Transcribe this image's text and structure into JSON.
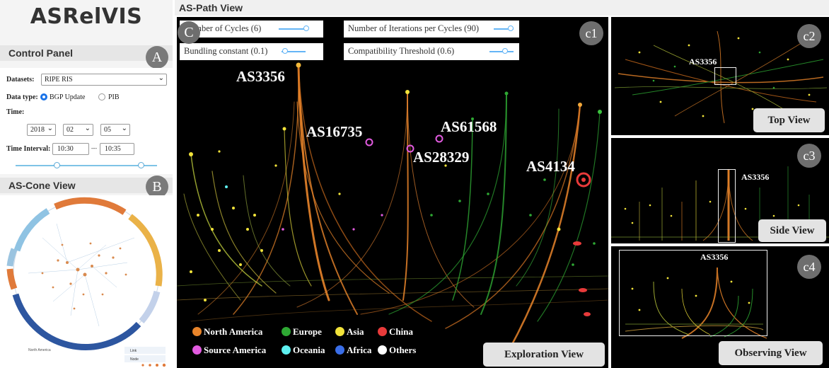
{
  "app": {
    "title": "ASRelVIS"
  },
  "control_panel": {
    "title": "Control Panel",
    "badge": "A",
    "datasets_label": "Datasets:",
    "dataset_value": "RIPE RIS",
    "datatype_label": "Data type:",
    "datatype_options": [
      "BGP Update",
      "PIB"
    ],
    "datatype_selected": "BGP Update",
    "time_label": "Time:",
    "year": "2018",
    "month": "02",
    "day": "05",
    "interval_label": "Time Interval:",
    "interval_start": "10:30",
    "interval_sep": "---",
    "interval_end": "10:35"
  },
  "cone_view": {
    "title": "AS-Cone View",
    "badge": "B",
    "region_label": "North America",
    "legend": {
      "link": "Link",
      "node": "Node"
    }
  },
  "path_view": {
    "title": "AS-Path View",
    "badge": "C",
    "panel_tag": "c1",
    "params": [
      {
        "label": "Number of Cycles (6)"
      },
      {
        "label": "Number of Iterations per Cycles (90)"
      },
      {
        "label": "Bundling constant (0.1)"
      },
      {
        "label": "Compatibility Threshold (0.6)"
      }
    ],
    "as_labels": [
      "AS3356",
      "AS16735",
      "AS61568",
      "AS28329",
      "AS4134"
    ],
    "legend": [
      {
        "label": "North America",
        "color": "#e8842a"
      },
      {
        "label": "Europe",
        "color": "#2ea833"
      },
      {
        "label": "Asia",
        "color": "#f2e33a"
      },
      {
        "label": "China",
        "color": "#e83a3a"
      },
      {
        "label": "Source America",
        "color": "#e25be0"
      },
      {
        "label": "Oceania",
        "color": "#5ef0f0"
      },
      {
        "label": "Africa",
        "color": "#3a6ee8"
      },
      {
        "label": "Others",
        "color": "#ffffff"
      }
    ],
    "view_button": "Exploration View"
  },
  "side_views": [
    {
      "tag": "c2",
      "as_label": "AS3356",
      "button": "Top View"
    },
    {
      "tag": "c3",
      "as_label": "AS3356",
      "button": "Side View"
    },
    {
      "tag": "c4",
      "as_label": "AS3356",
      "button": "Observing View"
    }
  ]
}
